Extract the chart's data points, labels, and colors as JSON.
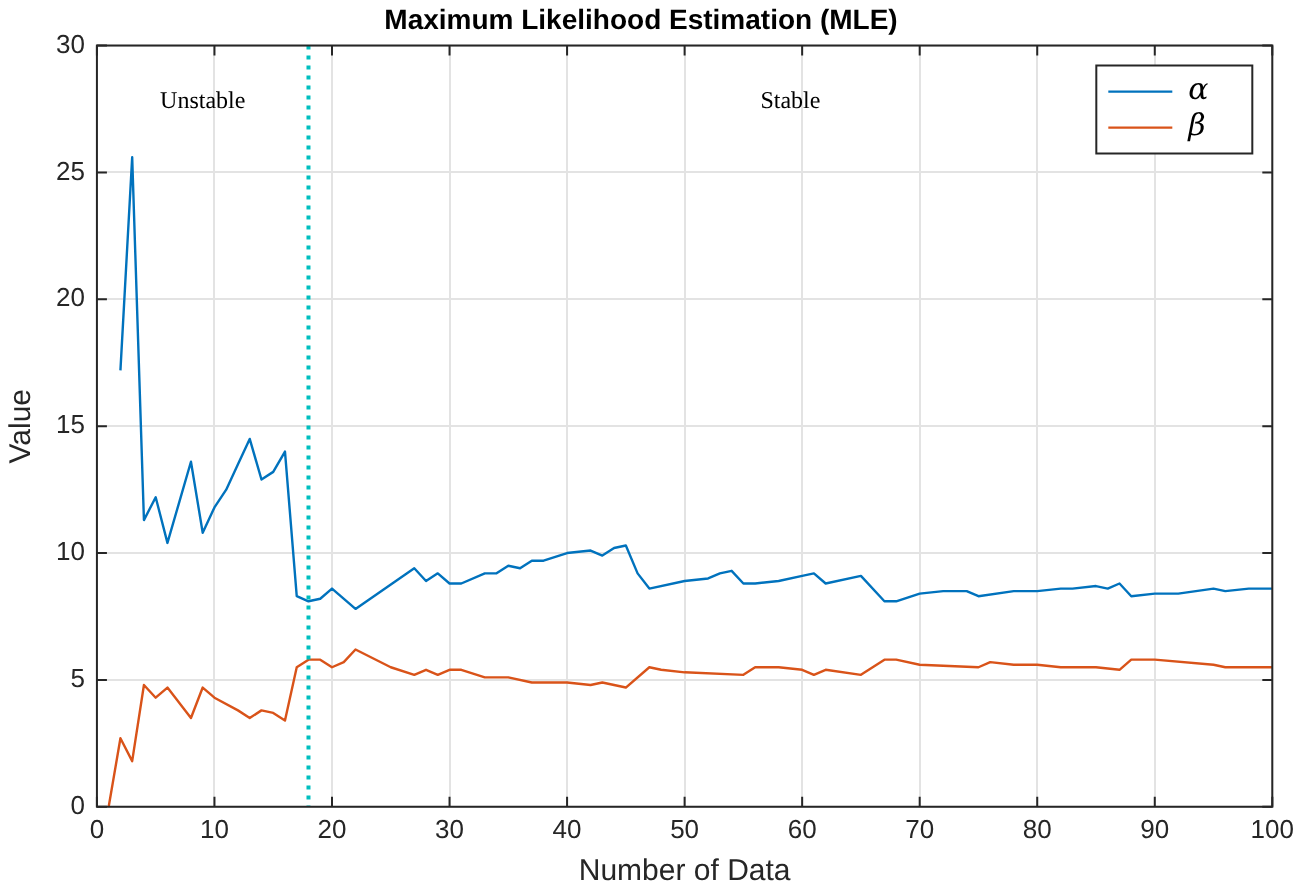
{
  "chart_data": {
    "type": "line",
    "title": "Maximum Likelihood Estimation (MLE)",
    "xlabel": "Number of Data",
    "ylabel": "Value",
    "series": [
      {
        "name": "α",
        "color": "#0072bd",
        "x": [
          2,
          3,
          4,
          5,
          6,
          7,
          8,
          9,
          10,
          11,
          12,
          13,
          14,
          15,
          16,
          17,
          18,
          19,
          20,
          22,
          27,
          28,
          29,
          30,
          31,
          33,
          34,
          35,
          36,
          37,
          38,
          40,
          42,
          43,
          44,
          45,
          46,
          47,
          50,
          52,
          53,
          54,
          55,
          56,
          58,
          60,
          61,
          62,
          65,
          67,
          68,
          70,
          72,
          74,
          75,
          78,
          80,
          82,
          83,
          85,
          86,
          87,
          88,
          90,
          92,
          95,
          96,
          98,
          100
        ],
        "values": [
          17.2,
          25.6,
          11.3,
          12.2,
          10.4,
          12.0,
          13.6,
          10.8,
          11.8,
          12.5,
          13.5,
          14.5,
          12.9,
          13.2,
          14.0,
          8.3,
          8.1,
          8.2,
          8.6,
          7.8,
          9.4,
          8.9,
          9.2,
          8.8,
          8.8,
          9.2,
          9.2,
          9.5,
          9.4,
          9.7,
          9.7,
          10.0,
          10.1,
          9.9,
          10.2,
          10.3,
          9.2,
          8.6,
          8.9,
          9.0,
          9.2,
          9.3,
          8.8,
          8.8,
          8.9,
          9.1,
          9.2,
          8.8,
          9.1,
          8.1,
          8.1,
          8.4,
          8.5,
          8.5,
          8.3,
          8.5,
          8.5,
          8.6,
          8.6,
          8.7,
          8.6,
          8.8,
          8.3,
          8.4,
          8.4,
          8.6,
          8.5,
          8.6,
          8.6
        ]
      },
      {
        "name": "β",
        "color": "#d95319",
        "x": [
          1,
          2,
          3,
          4,
          5,
          6,
          8,
          9,
          10,
          12,
          13,
          14,
          15,
          16,
          17,
          18,
          19,
          20,
          21,
          22,
          25,
          27,
          28,
          29,
          30,
          31,
          33,
          35,
          37,
          40,
          42,
          43,
          45,
          47,
          48,
          50,
          55,
          56,
          58,
          60,
          61,
          62,
          65,
          67,
          68,
          70,
          75,
          76,
          78,
          80,
          82,
          85,
          87,
          88,
          90,
          95,
          96,
          100
        ],
        "values": [
          0,
          2.7,
          1.8,
          4.8,
          4.3,
          4.7,
          3.5,
          4.7,
          4.3,
          3.8,
          3.5,
          3.8,
          3.7,
          3.4,
          5.5,
          5.8,
          5.8,
          5.5,
          5.7,
          6.2,
          5.5,
          5.2,
          5.4,
          5.2,
          5.4,
          5.4,
          5.1,
          5.1,
          4.9,
          4.9,
          4.8,
          4.9,
          4.7,
          5.5,
          5.4,
          5.3,
          5.2,
          5.5,
          5.5,
          5.4,
          5.2,
          5.4,
          5.2,
          5.8,
          5.8,
          5.6,
          5.5,
          5.7,
          5.6,
          5.6,
          5.5,
          5.5,
          5.4,
          5.8,
          5.8,
          5.6,
          5.5,
          5.5
        ]
      }
    ],
    "xlim": [
      0,
      100
    ],
    "xticks": [
      0,
      10,
      20,
      30,
      40,
      50,
      60,
      70,
      80,
      90,
      100
    ],
    "ylim": [
      0,
      30
    ],
    "yticks": [
      0,
      5,
      10,
      15,
      20,
      25,
      30
    ],
    "ref_lines": [
      {
        "axis": "x",
        "value": 18,
        "color": "#00bfbf",
        "line_style": "dotted"
      }
    ],
    "annotations": [
      "Unstable",
      "Stable"
    ],
    "grid": true,
    "legend": "top right",
    "marker": "none",
    "line_style": "solid"
  }
}
